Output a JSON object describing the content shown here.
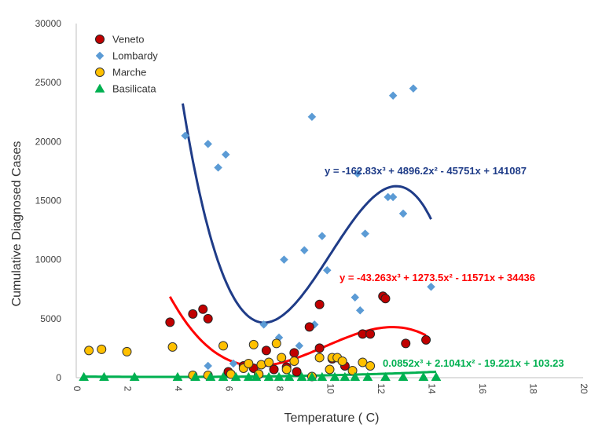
{
  "chart_data": {
    "type": "scatter",
    "title": "",
    "xlabel": "Temperature ( C)",
    "ylabel": "Cumulative Diagnosed Cases",
    "xlim": [
      0,
      20
    ],
    "ylim": [
      0,
      30000
    ],
    "xticks": [
      "0",
      "2",
      "4",
      "6",
      "8",
      "10",
      "12",
      "14",
      "16",
      "18",
      "20"
    ],
    "yticks": [
      "0",
      "5000",
      "10000",
      "15000",
      "20000",
      "25000",
      "30000"
    ],
    "grid": false,
    "legend_position": "top-left",
    "series": [
      {
        "name": "Veneto",
        "marker": "circle",
        "color": "#c00000",
        "edge": "#222222",
        "points": [
          [
            3.7,
            4700
          ],
          [
            4.6,
            5400
          ],
          [
            5.0,
            5800
          ],
          [
            5.2,
            5000
          ],
          [
            6.0,
            500
          ],
          [
            6.6,
            1000
          ],
          [
            7.0,
            800
          ],
          [
            7.2,
            300
          ],
          [
            7.5,
            2300
          ],
          [
            7.8,
            700
          ],
          [
            8.3,
            900
          ],
          [
            8.6,
            2100
          ],
          [
            8.7,
            500
          ],
          [
            9.2,
            4300
          ],
          [
            9.6,
            6200
          ],
          [
            9.6,
            2500
          ],
          [
            10.1,
            1600
          ],
          [
            10.6,
            1000
          ],
          [
            11.3,
            3700
          ],
          [
            11.6,
            3700
          ],
          [
            12.1,
            6900
          ],
          [
            12.2,
            6700
          ],
          [
            13.0,
            2900
          ],
          [
            13.8,
            3200
          ]
        ]
      },
      {
        "name": "Lombardy",
        "marker": "diamond",
        "color": "#5b9bd5",
        "edge": "#5b9bd5",
        "points": [
          [
            4.3,
            20500
          ],
          [
            5.2,
            19800
          ],
          [
            5.6,
            17800
          ],
          [
            5.9,
            18900
          ],
          [
            5.2,
            1000
          ],
          [
            6.2,
            1200
          ],
          [
            7.4,
            4500
          ],
          [
            8.2,
            10000
          ],
          [
            8.0,
            3400
          ],
          [
            8.8,
            2700
          ],
          [
            9.0,
            10800
          ],
          [
            9.3,
            22100
          ],
          [
            9.4,
            4500
          ],
          [
            9.7,
            12000
          ],
          [
            9.9,
            9100
          ],
          [
            11.0,
            6800
          ],
          [
            11.2,
            5700
          ],
          [
            11.4,
            12200
          ],
          [
            11.1,
            17300
          ],
          [
            12.3,
            15300
          ],
          [
            12.5,
            15300
          ],
          [
            12.5,
            23900
          ],
          [
            12.9,
            13900
          ],
          [
            13.3,
            24500
          ],
          [
            14.0,
            7700
          ]
        ]
      },
      {
        "name": "Marche",
        "marker": "circle",
        "color": "#ffc000",
        "edge": "#333333",
        "points": [
          [
            0.5,
            2300
          ],
          [
            1.0,
            2400
          ],
          [
            2.0,
            2200
          ],
          [
            3.8,
            2600
          ],
          [
            4.6,
            200
          ],
          [
            5.2,
            200
          ],
          [
            5.8,
            2700
          ],
          [
            6.1,
            300
          ],
          [
            6.6,
            800
          ],
          [
            6.8,
            1200
          ],
          [
            7.0,
            2800
          ],
          [
            7.2,
            300
          ],
          [
            7.3,
            1100
          ],
          [
            7.6,
            1300
          ],
          [
            7.9,
            2900
          ],
          [
            8.1,
            1700
          ],
          [
            8.3,
            700
          ],
          [
            8.6,
            1400
          ],
          [
            9.3,
            100
          ],
          [
            9.6,
            1700
          ],
          [
            10.0,
            700
          ],
          [
            10.1,
            1700
          ],
          [
            10.3,
            1700
          ],
          [
            10.5,
            1400
          ],
          [
            10.9,
            600
          ],
          [
            11.3,
            1300
          ],
          [
            11.6,
            1000
          ]
        ]
      },
      {
        "name": "Basilicata",
        "marker": "triangle",
        "color": "#00b050",
        "edge": "#00b050",
        "points": [
          [
            0.3,
            50
          ],
          [
            1.1,
            50
          ],
          [
            2.3,
            50
          ],
          [
            4.0,
            50
          ],
          [
            4.7,
            50
          ],
          [
            5.3,
            50
          ],
          [
            5.8,
            50
          ],
          [
            6.3,
            50
          ],
          [
            6.8,
            50
          ],
          [
            7.1,
            50
          ],
          [
            7.6,
            50
          ],
          [
            8.0,
            50
          ],
          [
            8.4,
            50
          ],
          [
            8.9,
            50
          ],
          [
            9.3,
            50
          ],
          [
            9.7,
            50
          ],
          [
            10.2,
            50
          ],
          [
            10.6,
            50
          ],
          [
            11.0,
            50
          ],
          [
            11.5,
            50
          ],
          [
            12.2,
            50
          ],
          [
            12.9,
            50
          ],
          [
            13.7,
            50
          ],
          [
            14.2,
            50
          ]
        ]
      }
    ],
    "trendlines": [
      {
        "series": "Lombardy",
        "color": "#1f3c88",
        "coefficients": [
          -162.83,
          4896.2,
          -45751,
          141087
        ],
        "x_range": [
          4.2,
          14.0
        ],
        "equation": "y = -162.83x³ + 4896.2x² - 45751x + 141087"
      },
      {
        "series": "Veneto",
        "color": "#ff0000",
        "coefficients": [
          -43.263,
          1273.5,
          -11571,
          34436
        ],
        "x_range": [
          3.7,
          13.8
        ],
        "equation": "y = -43.263x³ + 1273.5x² - 11571x + 34436"
      },
      {
        "series": "Basilicata",
        "color": "#00b050",
        "coefficients": [
          0.0852,
          2.1041,
          -19.221,
          103.23
        ],
        "x_range": [
          0.3,
          14.2
        ],
        "equation": "0.0852x³ + 2.1041x² - 19.221x + 103.23"
      }
    ]
  }
}
